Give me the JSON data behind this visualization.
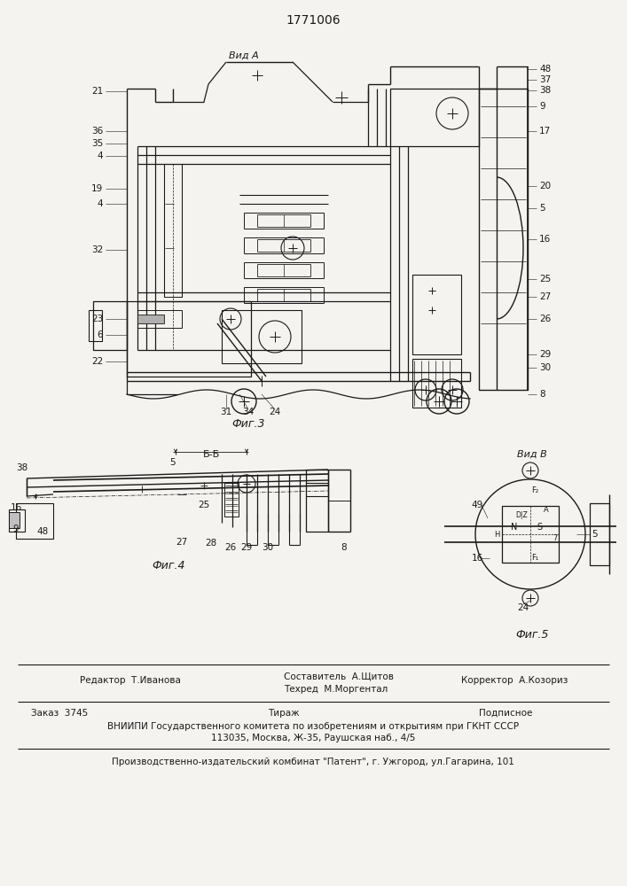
{
  "patent_number": "1771006",
  "background_color": "#f5f3ef",
  "line_color": "#1a1a1a",
  "fig3_label": "Фиг.3",
  "fig4_label": "Фиг.4",
  "fig5_label": "Фиг.5",
  "vid_a_label": "Вид А",
  "vid_b_label": "Вид В",
  "bb_label": "Б-Б",
  "editor_line": "Редактор  Т.Иванова",
  "compiler_line": "Составитель  А.Щитов",
  "techred_line": "Техред  М.Моргентал",
  "corrector_line": "Корректор  А.Козориз",
  "order_label": "Заказ  3745",
  "tirazh_label": "Тираж",
  "podpisnoe_label": "Подписное",
  "vniip_line": "ВНИИПИ Государственного комитета по изобретениям и открытиям при ГКНТ СССР",
  "address_line": "113035, Москва, Ж-35, Раушская наб., 4/5",
  "production_line": "Производственно-издательский комбинат \"Патент\", г. Ужгород, ул.Гагарина, 101"
}
